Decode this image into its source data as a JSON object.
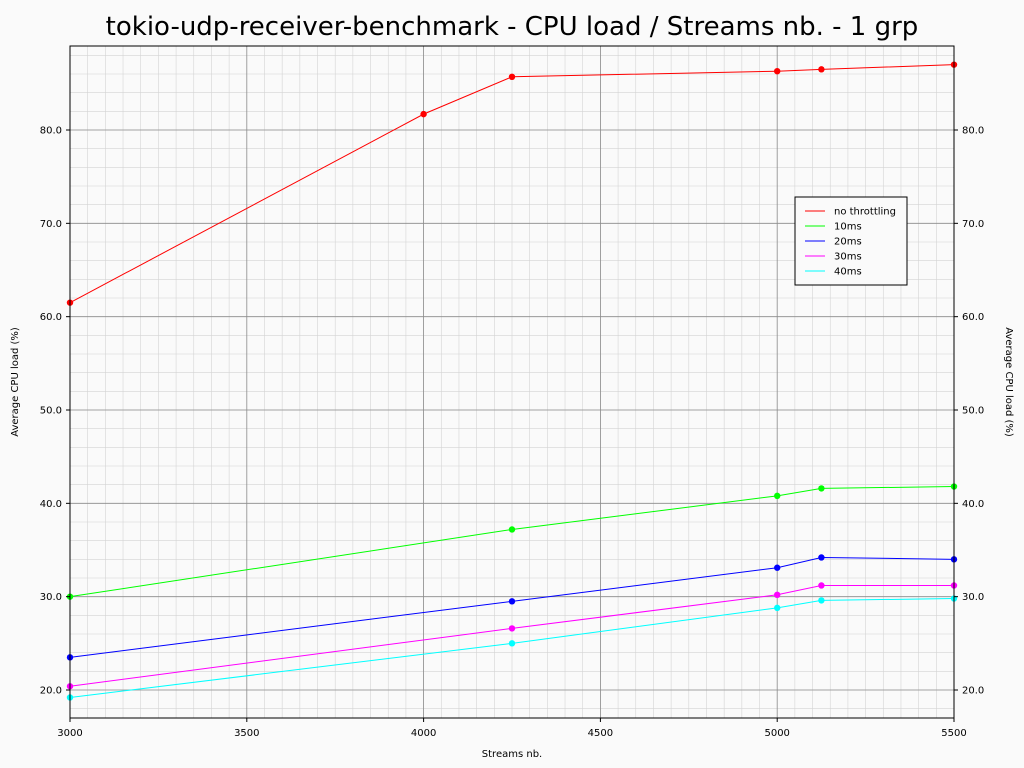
{
  "chart_data": {
    "type": "line",
    "title": "tokio-udp-receiver-benchmark - CPU load / Streams nb. - 1 grp",
    "xlabel": "Streams nb.",
    "ylabel": "Average CPU load (%)",
    "ylabel_right": "Average CPU load (%)",
    "xlim": [
      3000,
      5500
    ],
    "ylim": [
      17,
      89
    ],
    "x_ticks": [
      3000,
      3500,
      4000,
      4500,
      5000,
      5500
    ],
    "x_tick_labels": [
      "3000",
      "3500",
      "4000",
      "4500",
      "5000",
      "5500"
    ],
    "y_ticks": [
      20,
      30,
      40,
      50,
      60,
      70,
      80
    ],
    "y_tick_labels": [
      "20.0",
      "30.0",
      "40.0",
      "50.0",
      "60.0",
      "70.0",
      "80.0"
    ],
    "grid": true,
    "minor_grid": true,
    "legend_position": "right, upper-middle",
    "series": [
      {
        "name": "no throttling",
        "color": "#ff0000",
        "x": [
          3000,
          4000,
          4250,
          5000,
          5125,
          5500
        ],
        "y": [
          61.5,
          81.7,
          85.7,
          86.3,
          86.5,
          87.0
        ]
      },
      {
        "name": "10ms",
        "color": "#00ff00",
        "x": [
          3000,
          4250,
          5000,
          5125,
          5500
        ],
        "y": [
          30.0,
          37.2,
          40.8,
          41.6,
          41.8
        ]
      },
      {
        "name": "20ms",
        "color": "#0000ff",
        "x": [
          3000,
          4250,
          5000,
          5125,
          5500
        ],
        "y": [
          23.5,
          29.5,
          33.1,
          34.2,
          34.0
        ]
      },
      {
        "name": "30ms",
        "color": "#ff00ff",
        "x": [
          3000,
          4250,
          5000,
          5125,
          5500
        ],
        "y": [
          20.4,
          26.6,
          30.2,
          31.2,
          31.2
        ]
      },
      {
        "name": "40ms",
        "color": "#00ffff",
        "x": [
          3000,
          4250,
          5000,
          5125,
          5500
        ],
        "y": [
          19.2,
          25.0,
          28.8,
          29.6,
          29.8
        ]
      }
    ]
  }
}
